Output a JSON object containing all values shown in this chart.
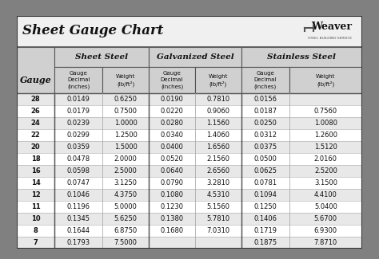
{
  "title": "Sheet Gauge Chart",
  "bg_outer": "#808080",
  "bg_inner": "#ffffff",
  "bg_header_row": "#d0d0d0",
  "bg_row_even": "#e8e8e8",
  "bg_row_odd": "#ffffff",
  "col_headers": [
    "Sheet Steel",
    "Galvanized Steel",
    "Stainless Steel"
  ],
  "gauges": [
    28,
    26,
    24,
    22,
    20,
    18,
    16,
    14,
    12,
    11,
    10,
    8,
    7
  ],
  "sheet_steel": [
    [
      "0.0149",
      "0.6250"
    ],
    [
      "0.0179",
      "0.7500"
    ],
    [
      "0.0239",
      "1.0000"
    ],
    [
      "0.0299",
      "1.2500"
    ],
    [
      "0.0359",
      "1.5000"
    ],
    [
      "0.0478",
      "2.0000"
    ],
    [
      "0.0598",
      "2.5000"
    ],
    [
      "0.0747",
      "3.1250"
    ],
    [
      "0.1046",
      "4.3750"
    ],
    [
      "0.1196",
      "5.0000"
    ],
    [
      "0.1345",
      "5.6250"
    ],
    [
      "0.1644",
      "6.8750"
    ],
    [
      "0.1793",
      "7.5000"
    ]
  ],
  "galvanized_steel": [
    [
      "0.0190",
      "0.7810"
    ],
    [
      "0.0220",
      "0.9060"
    ],
    [
      "0.0280",
      "1.1560"
    ],
    [
      "0.0340",
      "1.4060"
    ],
    [
      "0.0400",
      "1.6560"
    ],
    [
      "0.0520",
      "2.1560"
    ],
    [
      "0.0640",
      "2.6560"
    ],
    [
      "0.0790",
      "3.2810"
    ],
    [
      "0.1080",
      "4.5310"
    ],
    [
      "0.1230",
      "5.1560"
    ],
    [
      "0.1380",
      "5.7810"
    ],
    [
      "0.1680",
      "7.0310"
    ],
    [
      "",
      ""
    ]
  ],
  "stainless_steel": [
    [
      "0.0156",
      ""
    ],
    [
      "0.0187",
      "0.7560"
    ],
    [
      "0.0250",
      "1.0080"
    ],
    [
      "0.0312",
      "1.2600"
    ],
    [
      "0.0375",
      "1.5120"
    ],
    [
      "0.0500",
      "2.0160"
    ],
    [
      "0.0625",
      "2.5200"
    ],
    [
      "0.0781",
      "3.1500"
    ],
    [
      "0.1094",
      "4.4100"
    ],
    [
      "0.1250",
      "5.0400"
    ],
    [
      "0.1406",
      "5.6700"
    ],
    [
      "0.1719",
      "6.9300"
    ],
    [
      "0.1875",
      "7.8710"
    ]
  ]
}
